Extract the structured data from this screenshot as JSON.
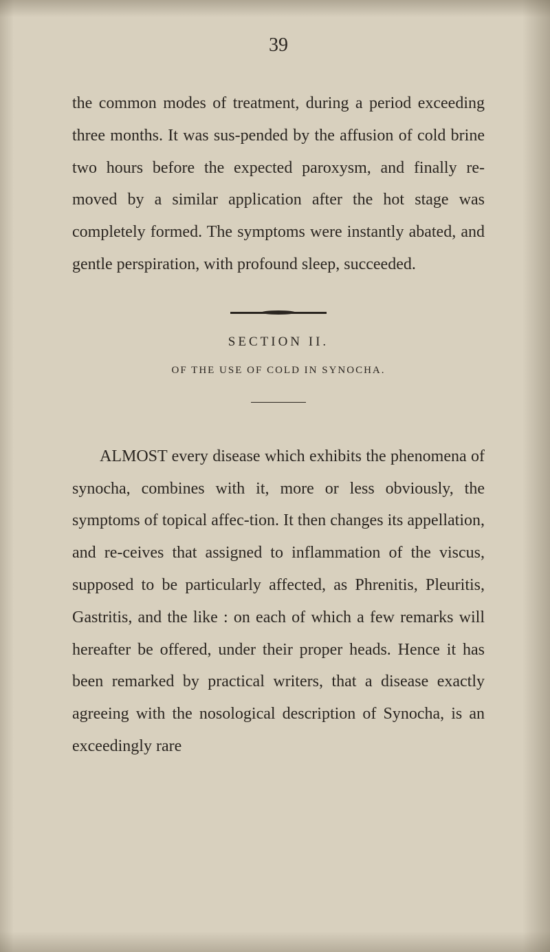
{
  "page_number": "39",
  "paragraph_1": "the common modes of treatment, during a period exceeding three months. It was sus-pended by the affusion of cold brine two hours before the expected paroxysm, and finally re-moved by a similar application after the hot stage was completely formed. The symptoms were instantly abated, and gentle perspiration, with profound sleep, succeeded.",
  "section_title": "SECTION II.",
  "section_subtitle": "OF THE USE OF COLD IN SYNOCHA.",
  "paragraph_2": "ALMOST every disease which exhibits the phenomena of synocha, combines with it, more or less obviously, the symptoms of topical affec-tion. It then changes its appellation, and re-ceives that assigned to inflammation of the viscus, supposed to be particularly affected, as Phrenitis, Pleuritis, Gastritis, and the like : on each of which a few remarks will hereafter be offered, under their proper heads. Hence it has been remarked by practical writers, that a disease exactly agreeing with the nosological description of Synocha, is an exceedingly rare",
  "colors": {
    "background": "#d8d0be",
    "text": "#2a2520"
  },
  "typography": {
    "body_fontsize": 24,
    "page_number_fontsize": 28,
    "section_title_fontsize": 19,
    "subtitle_fontsize": 15,
    "line_height": 1.95
  }
}
